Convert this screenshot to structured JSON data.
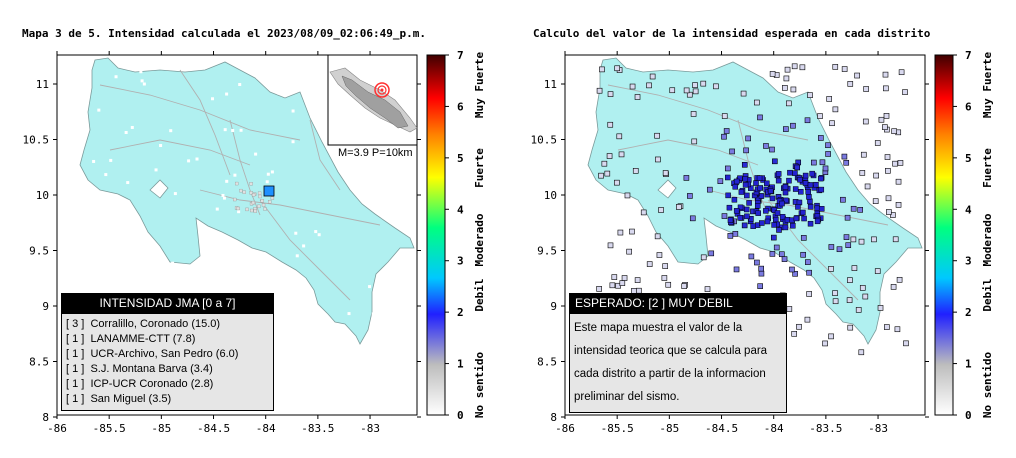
{
  "left": {
    "title": "Mapa 3 de 5. Intensidad calculada el 2023/08/09_02:06:49_p.m.",
    "x_ticks": [
      "-86",
      "-85.5",
      "-85",
      "-84.5",
      "-84",
      "-83.5",
      "-83"
    ],
    "y_ticks": [
      "11",
      "10.5",
      "10",
      "9.5",
      "9",
      "8.5",
      "8"
    ],
    "inset_caption": "M=3.9 P=10km",
    "legend": {
      "title": "INTENSIDAD JMA [0 a 7]",
      "rows": [
        {
          "value": "[ 3 ]",
          "station": "Corralillo, Coronado (15.0)"
        },
        {
          "value": "[ 1 ]",
          "station": "LANAMME-CTT (7.8)"
        },
        {
          "value": "[ 1 ]",
          "station": "UCR-Archivo, San Pedro (6.0)"
        },
        {
          "value": "[ 1 ]",
          "station": "S.J. Montana Barva (3.4)"
        },
        {
          "value": "[ 1 ]",
          "station": "ICP-UCR Coronado (2.8)"
        },
        {
          "value": "[ 1 ]",
          "station": "San Miguel (3.5)"
        }
      ]
    }
  },
  "right": {
    "title": "Calculo del valor de la intensidad esperada en cada distrito",
    "x_ticks": [
      "-86",
      "-85.5",
      "-85",
      "-84.5",
      "-84",
      "-83.5",
      "-83"
    ],
    "y_ticks": [
      "11",
      "10.5",
      "10",
      "9.5",
      "9",
      "8.5",
      "8"
    ],
    "legend": {
      "title": "ESPERADO: [2 ] MUY DEBIL",
      "text": "Este mapa muestra el valor de la intensidad teorica que se calcula para cada distrito a partir de la informacion preliminar del sismo."
    }
  },
  "colorbar": {
    "ticks": [
      "7",
      "6",
      "5",
      "4",
      "3",
      "2",
      "1",
      "0"
    ],
    "labels": [
      "Muy Fuerte",
      "Fuerte",
      "Moderado",
      "Debil",
      "No sentido"
    ],
    "colors": [
      "#ffffff",
      "#bdbdbd",
      "#2020ff",
      "#00c8ff",
      "#00ff80",
      "#ffff00",
      "#ff8000",
      "#ff0000",
      "#400000"
    ]
  },
  "colors": {
    "land": "#b0f0f0",
    "sea": "#ffffff",
    "epicenter": "#ff3030",
    "station": "#1e90ff",
    "district": "#3a3ad0"
  }
}
